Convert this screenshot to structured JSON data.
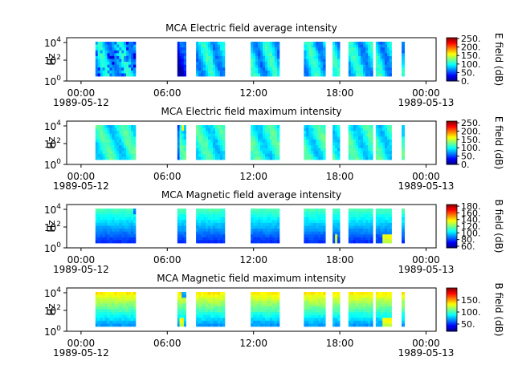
{
  "chart_data": [
    {
      "type": "heatmap",
      "title": "MCA  Electric field average intensity",
      "ylabel": "Hz",
      "y_scale": "log",
      "y_ticks": [
        {
          "base": "10",
          "exp": "0"
        },
        {
          "base": "10",
          "exp": "2"
        },
        {
          "base": "10",
          "exp": "4"
        }
      ],
      "x_ticks": [
        {
          "time": "00:00",
          "date": "1989-05-12"
        },
        {
          "time": "06:00",
          "date": ""
        },
        {
          "time": "12:00",
          "date": ""
        },
        {
          "time": "18:00",
          "date": ""
        },
        {
          "time": "00:00",
          "date": "1989-05-13"
        }
      ],
      "x_range_hours": [
        -1.0,
        24.7
      ],
      "colorbar": {
        "label": "E field (dB)",
        "range": [
          0,
          255
        ],
        "ticks": [
          "250.",
          "200.",
          "150.",
          "100.",
          "50.",
          "0."
        ],
        "tick_values": [
          250,
          200,
          150,
          100,
          50,
          0
        ]
      },
      "data_intervals_hours": [
        [
          1.0,
          3.8
        ],
        [
          6.7,
          7.3
        ],
        [
          8.0,
          10.0
        ],
        [
          11.8,
          13.8
        ],
        [
          15.5,
          17.0
        ],
        [
          17.5,
          18.0
        ],
        [
          18.6,
          20.3
        ],
        [
          20.5,
          21.6
        ],
        [
          22.3,
          22.5
        ]
      ],
      "level_profile": "average"
    },
    {
      "type": "heatmap",
      "title": "MCA  Electric field maximum intensity",
      "ylabel": "Hz",
      "y_scale": "log",
      "y_ticks": [
        {
          "base": "10",
          "exp": "0"
        },
        {
          "base": "10",
          "exp": "2"
        },
        {
          "base": "10",
          "exp": "4"
        }
      ],
      "x_ticks": [
        {
          "time": "00:00",
          "date": "1989-05-12"
        },
        {
          "time": "06:00",
          "date": ""
        },
        {
          "time": "12:00",
          "date": ""
        },
        {
          "time": "18:00",
          "date": ""
        },
        {
          "time": "00:00",
          "date": "1989-05-13"
        }
      ],
      "x_range_hours": [
        -1.0,
        24.7
      ],
      "colorbar": {
        "label": "E field (dB)",
        "range": [
          0,
          260
        ],
        "ticks": [
          "250.",
          "200.",
          "150.",
          "100.",
          "50.",
          "0."
        ],
        "tick_values": [
          250,
          200,
          150,
          100,
          50,
          0
        ]
      },
      "data_intervals_hours": [
        [
          1.0,
          3.8
        ],
        [
          6.7,
          7.3
        ],
        [
          8.0,
          10.0
        ],
        [
          11.8,
          13.8
        ],
        [
          15.5,
          17.0
        ],
        [
          17.5,
          18.0
        ],
        [
          18.6,
          20.3
        ],
        [
          20.5,
          21.6
        ],
        [
          22.3,
          22.5
        ]
      ],
      "level_profile": "maximum"
    },
    {
      "type": "heatmap",
      "title": "MCA  Magnetic field average intensity",
      "ylabel": "Hz",
      "y_scale": "log",
      "y_ticks": [
        {
          "base": "10",
          "exp": "0"
        },
        {
          "base": "10",
          "exp": "2"
        },
        {
          "base": "10",
          "exp": "4"
        }
      ],
      "x_ticks": [
        {
          "time": "00:00",
          "date": "1989-05-12"
        },
        {
          "time": "06:00",
          "date": ""
        },
        {
          "time": "12:00",
          "date": ""
        },
        {
          "time": "18:00",
          "date": ""
        },
        {
          "time": "00:00",
          "date": "1989-05-13"
        }
      ],
      "x_range_hours": [
        -1.0,
        24.7
      ],
      "colorbar": {
        "label": "B field (dB)",
        "range": [
          55,
          185
        ],
        "ticks": [
          "180.",
          "160.",
          "140.",
          "120.",
          "100.",
          "80.",
          "60."
        ],
        "tick_values": [
          180,
          160,
          140,
          120,
          100,
          80,
          60
        ]
      },
      "data_intervals_hours": [
        [
          1.0,
          3.8
        ],
        [
          6.7,
          7.3
        ],
        [
          8.0,
          10.0
        ],
        [
          11.8,
          13.8
        ],
        [
          15.5,
          17.0
        ],
        [
          17.5,
          18.0
        ],
        [
          18.6,
          20.3
        ],
        [
          20.5,
          21.6
        ],
        [
          22.3,
          22.5
        ]
      ],
      "level_profile": "magnetic-average"
    },
    {
      "type": "heatmap",
      "title": "MCA  Magnetic field maximum intensity",
      "ylabel": "Hz",
      "y_scale": "log",
      "y_ticks": [
        {
          "base": "10",
          "exp": "0"
        },
        {
          "base": "10",
          "exp": "2"
        },
        {
          "base": "10",
          "exp": "4"
        }
      ],
      "x_ticks": [
        {
          "time": "00:00",
          "date": "1989-05-12"
        },
        {
          "time": "06:00",
          "date": ""
        },
        {
          "time": "12:00",
          "date": ""
        },
        {
          "time": "18:00",
          "date": ""
        },
        {
          "time": "00:00",
          "date": "1989-05-13"
        }
      ],
      "x_range_hours": [
        -1.0,
        24.7
      ],
      "colorbar": {
        "label": "B field (dB)",
        "range": [
          20,
          200
        ],
        "ticks": [
          "150.",
          "100.",
          "50."
        ],
        "tick_values": [
          150,
          100,
          50
        ]
      },
      "data_intervals_hours": [
        [
          1.0,
          3.8
        ],
        [
          6.7,
          7.3
        ],
        [
          8.0,
          10.0
        ],
        [
          11.8,
          13.8
        ],
        [
          15.5,
          17.0
        ],
        [
          17.5,
          18.0
        ],
        [
          18.6,
          20.3
        ],
        [
          20.5,
          21.6
        ],
        [
          22.3,
          22.5
        ]
      ],
      "level_profile": "magnetic-maximum"
    }
  ]
}
